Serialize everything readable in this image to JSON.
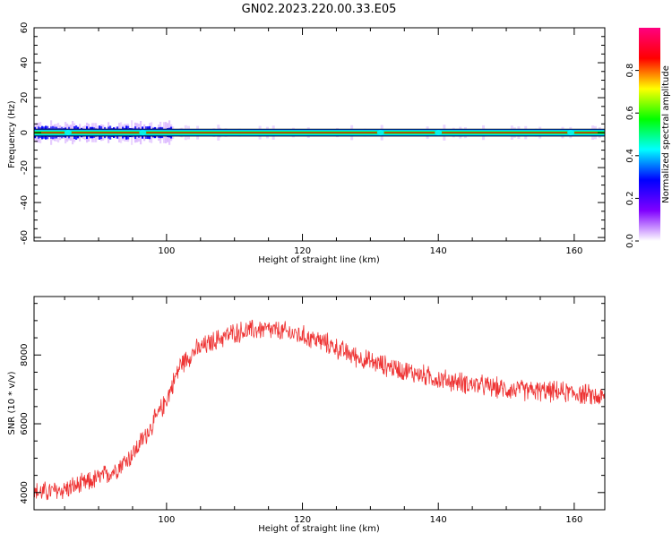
{
  "figure": {
    "title": "GN02.2023.220.00.33.E05"
  },
  "chart_data": [
    {
      "type": "heatmap",
      "xlabel": "Height of straight line (km)",
      "ylabel": "Frequency (Hz)",
      "xlim": [
        80.5,
        164.5
      ],
      "ylim": [
        -62,
        60
      ],
      "xticks": [
        100,
        120,
        140,
        160
      ],
      "yticks": [
        -60,
        -40,
        -20,
        0,
        20,
        40,
        60
      ],
      "yticklabels": [
        "-60",
        "-40",
        "-20",
        "0",
        "20",
        "40",
        "60"
      ],
      "band_center_hz": 0,
      "band_halfwidth_hz": 2,
      "strong_points_km": [
        85.5,
        96.5,
        131.5,
        140,
        159.5
      ],
      "colorbar": {
        "label": "Normalized spectral amplitude",
        "range": [
          0,
          1
        ],
        "ticks": [
          0.0,
          0.2,
          0.4,
          0.6,
          0.8
        ],
        "ticklabels": [
          "0.0",
          "0.2",
          "0.4",
          "0.6",
          "0.8"
        ],
        "colormap": [
          "#ffffff",
          "#8000ff",
          "#0000ff",
          "#00ffff",
          "#00ff00",
          "#ffff00",
          "#ff0000",
          "#ff0080"
        ]
      }
    },
    {
      "type": "line",
      "xlabel": "Height of straight line (km)",
      "ylabel": "SNR (10 * v/v)",
      "xlim": [
        80.5,
        164.5
      ],
      "ylim": [
        3500,
        9700
      ],
      "xticks": [
        100,
        120,
        140,
        160
      ],
      "yticks": [
        4000,
        6000,
        8000
      ],
      "series": [
        {
          "color": "#ee3333",
          "trend": {
            "x": [
              80.5,
              84,
              88,
              92,
              95,
              98,
              100,
              102,
              104,
              106,
              108,
              110,
              112,
              114,
              116,
              118,
              120,
              122,
              124,
              126,
              128,
              130,
              135,
              140,
              145,
              150,
              155,
              160,
              164.5
            ],
            "y": [
              4000,
              4050,
              4250,
              4600,
              5100,
              6000,
              6700,
              7700,
              8100,
              8300,
              8500,
              8650,
              8700,
              8750,
              8700,
              8650,
              8550,
              8450,
              8300,
              8100,
              7950,
              7800,
              7550,
              7300,
              7150,
              7000,
              6950,
              6900,
              6750
            ]
          },
          "noise_amplitude": 260
        }
      ]
    }
  ]
}
